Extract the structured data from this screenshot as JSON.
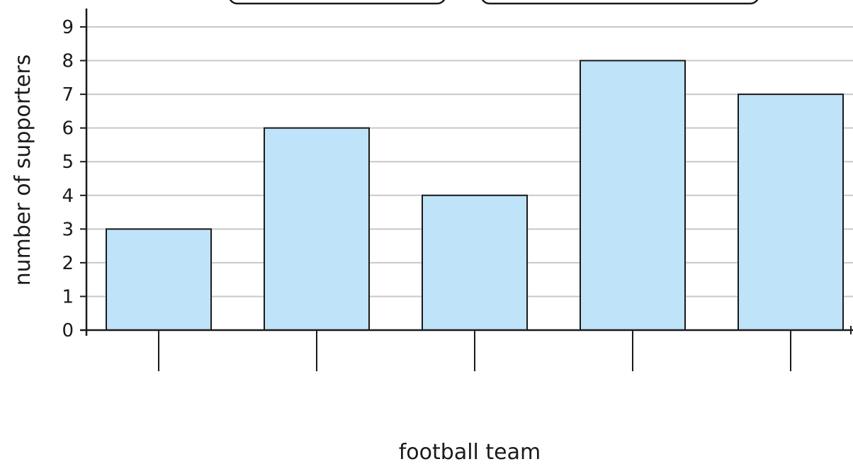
{
  "chart_data": {
    "type": "bar",
    "categories": [
      "",
      "",
      "",
      "",
      ""
    ],
    "values": [
      3,
      6,
      4,
      8,
      7
    ],
    "xlabel": "football team",
    "ylabel": "number of supporters",
    "ylim": [
      0,
      9
    ],
    "yticks": [
      "0",
      "1",
      "2",
      "3",
      "4",
      "5",
      "6",
      "7",
      "8",
      "9"
    ],
    "grid": true,
    "bar_color": "#bfe3f8",
    "bar_edge_color": "#1a1a1a",
    "grid_color": "#c8c8c8",
    "axis_color": "#1a1a1a"
  }
}
